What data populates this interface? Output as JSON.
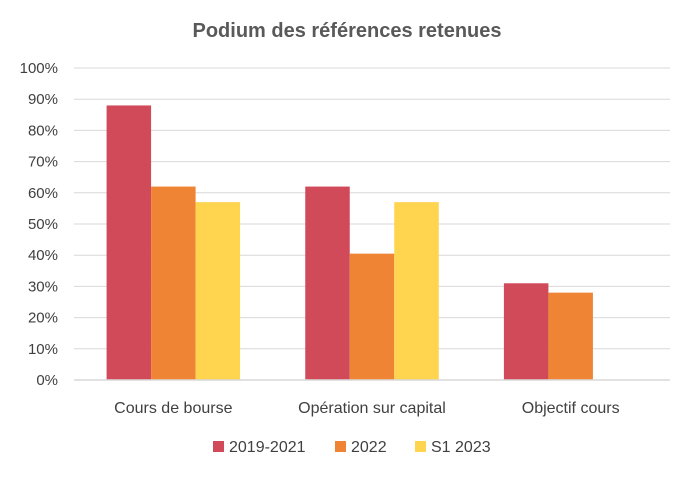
{
  "chart_data": {
    "type": "bar",
    "title": "Podium des références retenues",
    "categories": [
      "Cours de bourse",
      "Opération sur capital",
      "Objectif cours"
    ],
    "series": [
      {
        "name": "2019-2021",
        "color": "#D14A5A",
        "values": [
          88,
          62,
          31
        ]
      },
      {
        "name": "2022",
        "color": "#EE8434",
        "values": [
          62,
          40.5,
          28
        ]
      },
      {
        "name": "S1 2023",
        "color": "#FFD44F",
        "values": [
          57,
          57,
          0
        ]
      }
    ],
    "ylim": [
      0,
      100
    ],
    "yticks": [
      {
        "value": 0,
        "label": "0%"
      },
      {
        "value": 10,
        "label": "10%"
      },
      {
        "value": 20,
        "label": "20%"
      },
      {
        "value": 30,
        "label": "30%"
      },
      {
        "value": 40,
        "label": "40%"
      },
      {
        "value": 50,
        "label": "50%"
      },
      {
        "value": 60,
        "label": "60%"
      },
      {
        "value": 70,
        "label": "70%"
      },
      {
        "value": 80,
        "label": "80%"
      },
      {
        "value": 90,
        "label": "90%"
      },
      {
        "value": 100,
        "label": "100%"
      }
    ],
    "grid": true,
    "gridline_color": "#D9D9D9",
    "legend_position": "bottom"
  }
}
